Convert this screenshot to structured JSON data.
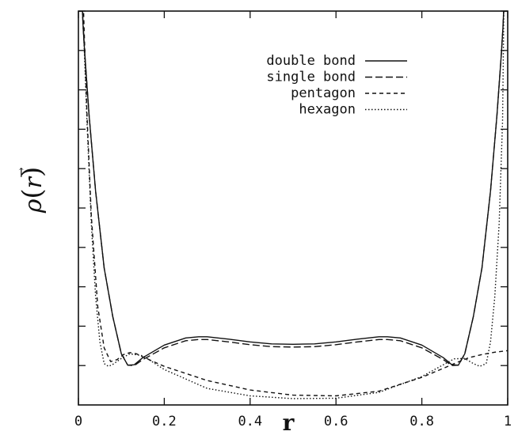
{
  "chart_data": {
    "type": "line",
    "title": "",
    "xlabel": "r",
    "ylabel": "ρ(r⃗)",
    "ylabel_parts": {
      "symbol": "ρ",
      "arg": "r",
      "vector_mark": "→"
    },
    "xlim": [
      0,
      1
    ],
    "ylim": [
      0,
      10
    ],
    "x_ticks": [
      0,
      0.2,
      0.4,
      0.6,
      0.8,
      1
    ],
    "x_tick_labels": [
      "0",
      "0.2",
      "0.4",
      "0.6",
      "0.8",
      "1"
    ],
    "y_ticks_unlabeled": [
      1,
      2,
      3,
      4,
      5,
      6,
      7,
      8,
      9,
      10
    ],
    "grid": false,
    "legend_position": "top-right",
    "series": [
      {
        "name": "double bond",
        "dash": "solid",
        "color": "#111111",
        "x": [
          0.0,
          0.0095,
          0.011,
          0.015,
          0.025,
          0.04,
          0.06,
          0.08,
          0.1,
          0.115,
          0.13,
          0.15,
          0.2,
          0.25,
          0.28,
          0.3,
          0.35,
          0.4,
          0.45,
          0.5,
          0.55,
          0.6,
          0.65,
          0.7,
          0.72,
          0.75,
          0.8,
          0.85,
          0.87,
          0.885,
          0.9,
          0.92,
          0.94,
          0.96,
          0.975,
          0.985,
          0.989,
          0.9905,
          1.0
        ],
        "y": [
          10.0,
          10.0,
          9.58,
          8.89,
          7.35,
          5.43,
          3.48,
          2.24,
          1.3,
          1.01,
          1.02,
          1.2,
          1.52,
          1.7,
          1.73,
          1.73,
          1.67,
          1.6,
          1.55,
          1.54,
          1.55,
          1.6,
          1.67,
          1.73,
          1.73,
          1.7,
          1.52,
          1.2,
          1.02,
          1.01,
          1.3,
          2.24,
          3.48,
          5.43,
          7.35,
          8.89,
          9.58,
          10.0,
          10.0
        ]
      },
      {
        "name": "single bond",
        "dash": "long-dash",
        "color": "#111111",
        "x": [
          0.0,
          0.0095,
          0.011,
          0.015,
          0.025,
          0.04,
          0.06,
          0.08,
          0.1,
          0.115,
          0.13,
          0.15,
          0.2,
          0.25,
          0.28,
          0.3,
          0.35,
          0.4,
          0.45,
          0.5,
          0.55,
          0.6,
          0.65,
          0.7,
          0.72,
          0.75,
          0.8,
          0.85,
          0.87,
          0.885,
          0.9,
          0.92,
          0.94,
          0.96,
          0.975,
          0.985,
          0.989,
          0.9905,
          1.0
        ],
        "y": [
          10.0,
          10.0,
          9.58,
          8.89,
          7.35,
          5.43,
          3.48,
          2.24,
          1.3,
          1.01,
          1.0,
          1.15,
          1.45,
          1.63,
          1.66,
          1.66,
          1.6,
          1.53,
          1.48,
          1.47,
          1.48,
          1.53,
          1.6,
          1.66,
          1.66,
          1.63,
          1.45,
          1.15,
          1.0,
          1.01,
          1.3,
          2.24,
          3.48,
          5.43,
          7.35,
          8.89,
          9.58,
          10.0,
          10.0
        ]
      },
      {
        "name": "pentagon",
        "dash": "short-dash",
        "color": "#111111",
        "x": [
          0.0,
          0.012,
          0.014,
          0.02,
          0.03,
          0.045,
          0.06,
          0.075,
          0.09,
          0.105,
          0.12,
          0.135,
          0.15,
          0.2,
          0.3,
          0.4,
          0.5,
          0.6,
          0.7,
          0.8,
          0.85,
          0.88,
          0.91,
          0.94,
          0.97,
          1.0
        ],
        "y": [
          10.0,
          10.0,
          9.3,
          7.4,
          4.8,
          2.5,
          1.45,
          1.1,
          1.15,
          1.28,
          1.33,
          1.3,
          1.22,
          0.98,
          0.62,
          0.38,
          0.25,
          0.23,
          0.35,
          0.7,
          0.93,
          1.07,
          1.2,
          1.28,
          1.34,
          1.38
        ]
      },
      {
        "name": "hexagon",
        "dash": "dotted",
        "color": "#111111",
        "x": [
          0.0,
          0.009,
          0.012,
          0.02,
          0.03,
          0.04,
          0.05,
          0.06,
          0.07,
          0.08,
          0.1,
          0.12,
          0.15,
          0.2,
          0.3,
          0.4,
          0.5,
          0.6,
          0.7,
          0.8,
          0.85,
          0.875,
          0.9,
          0.92,
          0.935,
          0.95,
          0.96,
          0.97,
          0.98,
          0.988,
          0.991,
          1.0
        ],
        "y": [
          10.0,
          10.0,
          9.5,
          7.2,
          4.6,
          2.75,
          1.6,
          1.05,
          0.98,
          1.03,
          1.18,
          1.3,
          1.25,
          0.9,
          0.42,
          0.23,
          0.16,
          0.17,
          0.32,
          0.72,
          1.02,
          1.17,
          1.18,
          1.05,
          0.98,
          1.05,
          1.6,
          2.75,
          4.6,
          7.2,
          10.0,
          10.0
        ]
      }
    ]
  }
}
